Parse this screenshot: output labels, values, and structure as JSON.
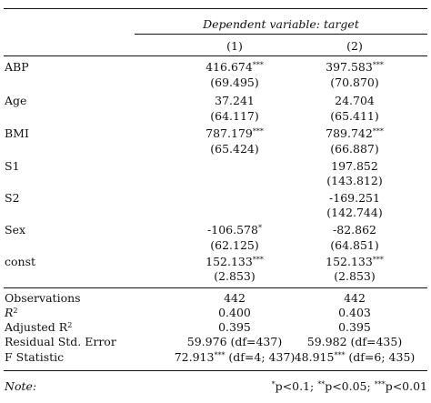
{
  "header": {
    "dependent": "Dependent variable: target",
    "col1": "(1)",
    "col2": "(2)"
  },
  "rows": [
    {
      "label": "ABP",
      "c1": "416.674",
      "c1_stars": "***",
      "c1_se": "(69.495)",
      "c2": "397.583",
      "c2_stars": "***",
      "c2_se": "(70.870)"
    },
    {
      "label": "Age",
      "c1": "37.241",
      "c1_stars": "",
      "c1_se": "(64.117)",
      "c2": "24.704",
      "c2_stars": "",
      "c2_se": "(65.411)"
    },
    {
      "label": "BMI",
      "c1": "787.179",
      "c1_stars": "***",
      "c1_se": "(65.424)",
      "c2": "789.742",
      "c2_stars": "***",
      "c2_se": "(66.887)"
    },
    {
      "label": "S1",
      "c1": "",
      "c1_stars": "",
      "c1_se": "",
      "c2": "197.852",
      "c2_stars": "",
      "c2_se": "(143.812)"
    },
    {
      "label": "S2",
      "c1": "",
      "c1_stars": "",
      "c1_se": "",
      "c2": "-169.251",
      "c2_stars": "",
      "c2_se": "(142.744)"
    },
    {
      "label": "Sex",
      "c1": "-106.578",
      "c1_stars": "*",
      "c1_se": "(62.125)",
      "c2": "-82.862",
      "c2_stars": "",
      "c2_se": "(64.851)"
    },
    {
      "label": "const",
      "c1": "152.133",
      "c1_stars": "***",
      "c1_se": "(2.853)",
      "c2": "152.133",
      "c2_stars": "***",
      "c2_se": "(2.853)"
    }
  ],
  "stats": {
    "observations": {
      "label": "Observations",
      "c1": "442",
      "c2": "442"
    },
    "r2": {
      "label_pre": "R",
      "label_sup": "2",
      "c1": "0.400",
      "c2": "0.403"
    },
    "adj_r2": {
      "label_pre": "Adjusted R",
      "label_sup": "2",
      "c1": "0.395",
      "c2": "0.395"
    },
    "rse": {
      "label": "Residual Std. Error",
      "c1": "59.976 (df=437)",
      "c2": "59.982 (df=435)"
    },
    "f": {
      "label": "F Statistic",
      "c1_val": "72.913",
      "c1_stars": "***",
      "c1_df": " (df=4; 437)",
      "c2_val": "48.915",
      "c2_stars": "***",
      "c2_df": " (df=6; 435)"
    }
  },
  "note": {
    "label": "Note:",
    "s1": "*",
    "t1": "p<0.1; ",
    "s2": "**",
    "t2": "p<0.05; ",
    "s3": "***",
    "t3": "p<0.01"
  }
}
